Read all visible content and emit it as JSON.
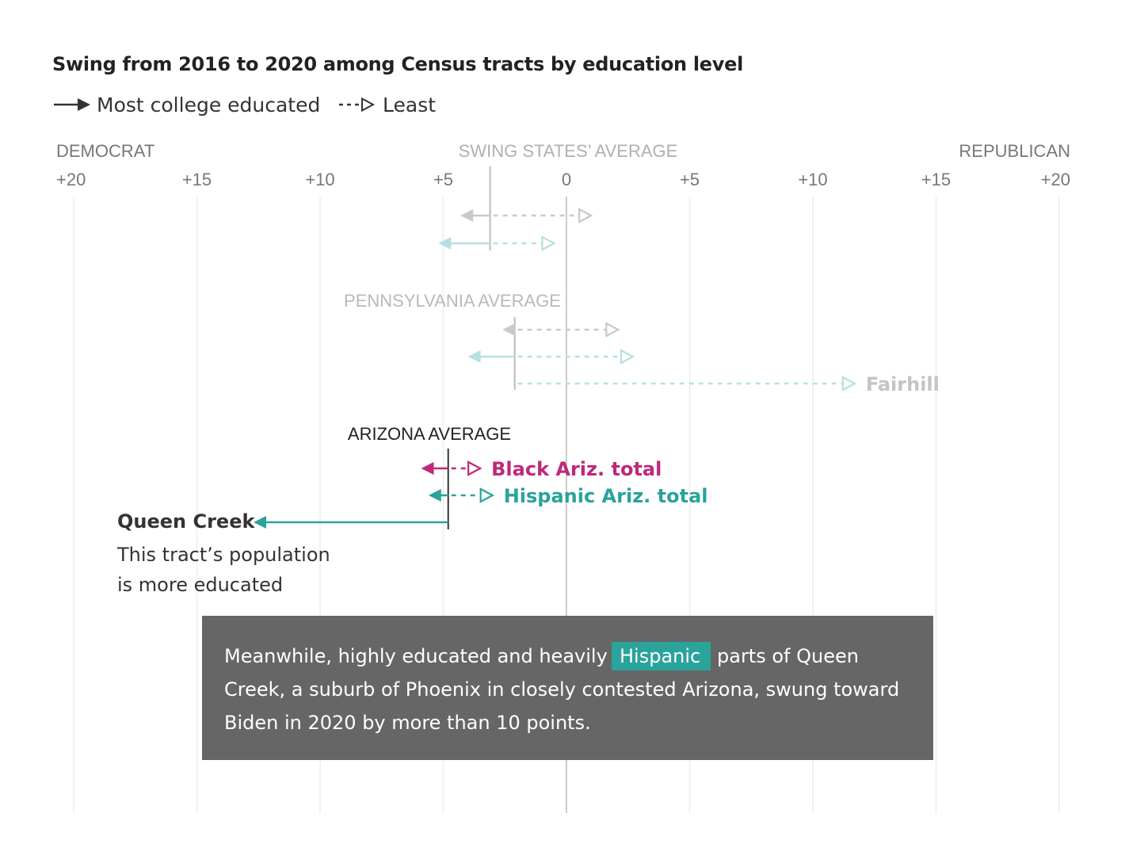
{
  "chart_data": {
    "type": "arrow-range",
    "title": "Swing from 2016 to 2020 among Census tracts by education level",
    "legend": [
      {
        "label": "Most college educated",
        "style": "solid"
      },
      {
        "label": "Least",
        "style": "dashed"
      }
    ],
    "x_side_labels": {
      "left": "DEMOCRAT",
      "right": "REPUBLICAN"
    },
    "xlim": [
      -20,
      20
    ],
    "ticks": [
      {
        "value": -20,
        "label": "+20"
      },
      {
        "value": -15,
        "label": "+15"
      },
      {
        "value": -10,
        "label": "+10"
      },
      {
        "value": -5,
        "label": "+5"
      },
      {
        "value": 0,
        "label": "0"
      },
      {
        "value": 5,
        "label": "+5"
      },
      {
        "value": 10,
        "label": "+10"
      },
      {
        "value": 15,
        "label": "+15"
      },
      {
        "value": 20,
        "label": "+20"
      }
    ],
    "colors": {
      "faded_gray": "#c9c9c9",
      "faded_teal": "#b7e0e0",
      "black": "#333333",
      "magenta": "#c0287a",
      "teal": "#2aa39b",
      "callout_bg": "#666666",
      "highlight": "#2aa39b",
      "grid": "#eeeeee"
    },
    "groups": [
      {
        "label": "SWING STATES’ AVERAGE",
        "average": -3.1,
        "faded": true,
        "rows": [
          {
            "name": "",
            "color_key": "faded_gray",
            "most": -4.3,
            "least": 1.0
          },
          {
            "name": "",
            "color_key": "faded_teal",
            "most": -5.2,
            "least": -0.5
          }
        ]
      },
      {
        "label": "PENNSYLVANIA AVERAGE",
        "average": -2.1,
        "faded": true,
        "rows": [
          {
            "name": "",
            "color_key": "faded_gray",
            "most": -2.6,
            "least": 2.1
          },
          {
            "name": "",
            "color_key": "faded_teal",
            "most": -4.0,
            "least": 2.7
          },
          {
            "name": "Fairhill",
            "color_key": "faded_teal",
            "most": null,
            "least": 11.7
          }
        ]
      },
      {
        "label": "ARIZONA AVERAGE",
        "average": -4.8,
        "faded": false,
        "rows": [
          {
            "name": "Black Ariz. total",
            "color_key": "magenta",
            "most": -5.9,
            "least": -3.5
          },
          {
            "name": "Hispanic Ariz. total",
            "color_key": "teal",
            "most": -5.6,
            "least": -3.0
          },
          {
            "name": "Queen Creek",
            "color_key": "teal",
            "most": -12.7,
            "least": null
          }
        ]
      }
    ],
    "annotations": {
      "queen_creek_name": "Queen Creek",
      "queen_creek_note_line1": "This tract’s population",
      "queen_creek_note_line2": "is more educated"
    }
  },
  "callout": {
    "line1_before": "Meanwhile, highly educated and heavily",
    "highlight": "Hispanic",
    "line1_after": "parts of Queen",
    "line2": "Creek, a suburb of Phoenix in closely contested Arizona, swung toward",
    "line3": "Biden in 2020 by more than 10 points."
  }
}
